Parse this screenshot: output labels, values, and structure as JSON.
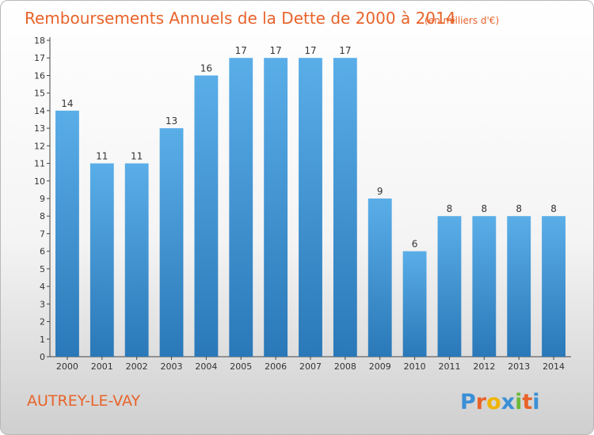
{
  "chart_data": {
    "type": "bar",
    "title": "Remboursements Annuels de la Dette de 2000 à 2014",
    "unit": "(en milliers d'€)",
    "categories": [
      "2000",
      "2001",
      "2002",
      "2003",
      "2004",
      "2005",
      "2006",
      "2007",
      "2008",
      "2009",
      "2010",
      "2011",
      "2012",
      "2013",
      "2014"
    ],
    "values": [
      14,
      11,
      11,
      13,
      16,
      17,
      17,
      17,
      17,
      9,
      6,
      8,
      8,
      8,
      8
    ],
    "ylim": [
      0,
      18
    ],
    "yticks": [
      0,
      1,
      2,
      3,
      4,
      5,
      6,
      7,
      8,
      9,
      10,
      11,
      12,
      13,
      14,
      15,
      16,
      17,
      18
    ],
    "grid": false,
    "bar_color_top": "#5aaee8",
    "bar_color_bottom": "#2a78b8"
  },
  "footer": {
    "commune": "AUTREY-LE-VAY",
    "logo_letters": [
      "P",
      "r",
      "o",
      "x",
      "i",
      "t",
      "i"
    ],
    "logo_colors": [
      "#3a8fd6",
      "#e8632a",
      "#f0b400",
      "#3a8fd6",
      "#6cb83a",
      "#e8632a",
      "#3a8fd6"
    ]
  }
}
